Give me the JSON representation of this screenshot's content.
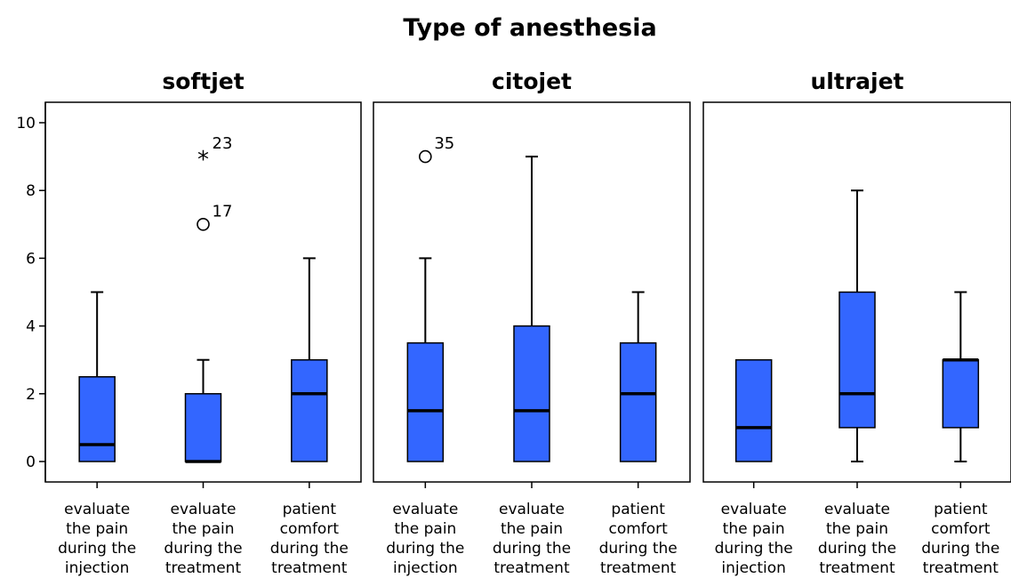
{
  "chart_data": {
    "type": "boxplot",
    "title": "Type of anesthesia",
    "ylim": [
      0,
      10
    ],
    "yticks": [
      0,
      2,
      4,
      6,
      8,
      10
    ],
    "box_color": "#3366ff",
    "categories": [
      [
        "evaluate",
        "the pain",
        "during the",
        "injection"
      ],
      [
        "evaluate",
        "the pain",
        "during the",
        "treatment"
      ],
      [
        "patient",
        "comfort",
        "during the",
        "treatment"
      ]
    ],
    "panels": [
      {
        "name": "softjet",
        "boxes": [
          {
            "min": 0,
            "q1": 0,
            "median": 0.5,
            "q3": 2.5,
            "max": 5,
            "outliers": []
          },
          {
            "min": 0,
            "q1": 0,
            "median": 0,
            "q3": 2,
            "max": 3,
            "outliers": [
              {
                "value": 9,
                "label": "23",
                "marker": "star"
              },
              {
                "value": 7,
                "label": "17",
                "marker": "circle"
              }
            ]
          },
          {
            "min": 0,
            "q1": 0,
            "median": 2,
            "q3": 3,
            "max": 6,
            "outliers": []
          }
        ]
      },
      {
        "name": "citojet",
        "boxes": [
          {
            "min": 0,
            "q1": 0,
            "median": 1.5,
            "q3": 3.5,
            "max": 6,
            "outliers": [
              {
                "value": 9,
                "label": "35",
                "marker": "circle"
              }
            ]
          },
          {
            "min": 0,
            "q1": 0,
            "median": 1.5,
            "q3": 4,
            "max": 9,
            "outliers": []
          },
          {
            "min": 0,
            "q1": 0,
            "median": 2,
            "q3": 3.5,
            "max": 5,
            "outliers": []
          }
        ]
      },
      {
        "name": "ultrajet",
        "boxes": [
          {
            "min": 0,
            "q1": 0,
            "median": 1,
            "q3": 3,
            "max": 3,
            "outliers": []
          },
          {
            "min": 0,
            "q1": 1,
            "median": 2,
            "q3": 5,
            "max": 8,
            "outliers": []
          },
          {
            "min": 0,
            "q1": 1,
            "median": 3,
            "q3": 3,
            "max": 5,
            "outliers": []
          }
        ]
      }
    ]
  }
}
